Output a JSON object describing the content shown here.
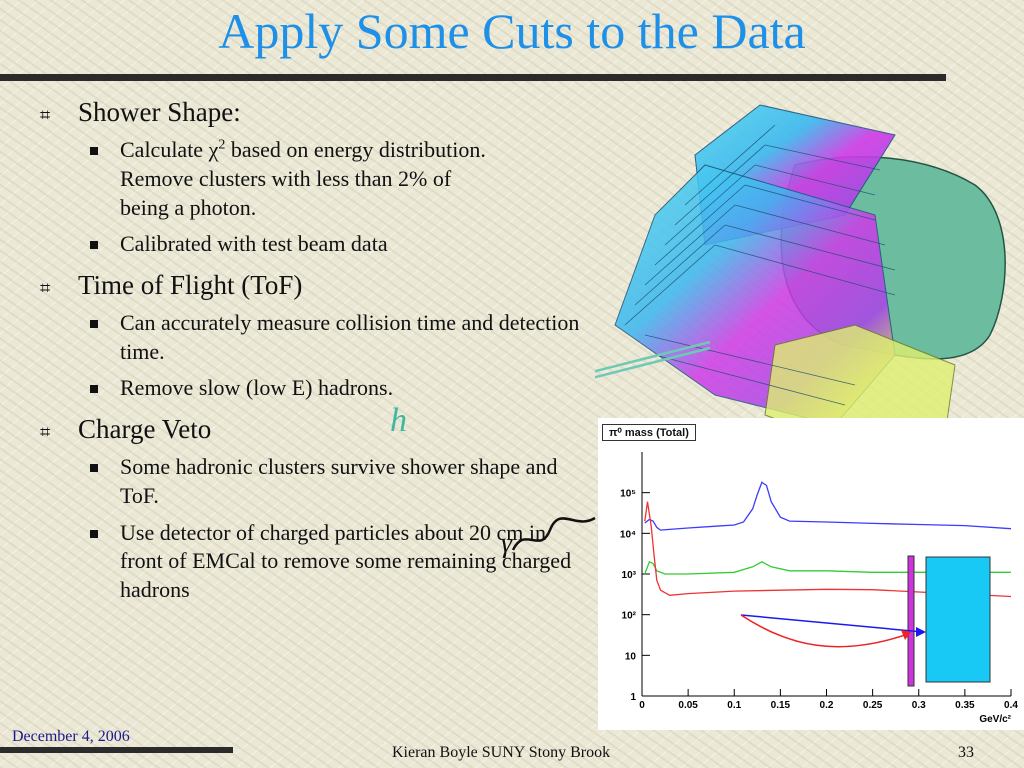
{
  "slide": {
    "title": "Apply Some Cuts to the Data",
    "footer_date": "December 4, 2006",
    "footer_author": "Kieran Boyle SUNY Stony Brook",
    "page_number": "33"
  },
  "bullets": {
    "shower_shape": {
      "heading": "Shower Shape:",
      "item1_pre": "Calculate χ",
      "item1_sup": "2",
      "item1_post": " based on energy distribution.  Remove clusters with less than 2% of being a photon.",
      "item2": "Calibrated with test beam data"
    },
    "tof": {
      "heading": "Time of Flight (ToF)",
      "item1": "Can accurately measure collision time and detection time.",
      "item2": "Remove slow (low E) hadrons."
    },
    "veto": {
      "heading": "Charge Veto",
      "item1": "Some hadronic clusters survive shower shape and ToF.",
      "item2": "Use detector of charged particles about 20 cm in front of EMCal to remove some remaining charged hadrons"
    }
  },
  "diagram": {
    "hadron_label": "h",
    "photon_label": "γ"
  },
  "chart_data": {
    "type": "line",
    "title": "π⁰ mass (Total)",
    "xlabel": "GeV/c²",
    "ylabel": "",
    "xlim": [
      0,
      0.4
    ],
    "ylim_log10": [
      0,
      6
    ],
    "y_log_scale": true,
    "x_ticks": [
      "0",
      "0.05",
      "0.1",
      "0.15",
      "0.2",
      "0.25",
      "0.3",
      "0.35",
      "0.4"
    ],
    "y_ticks": [
      "1",
      "10",
      "10²",
      "10³",
      "10⁴",
      "10⁵"
    ],
    "series": [
      {
        "color": "#3b3bff",
        "x": [
          0.003,
          0.008,
          0.012,
          0.016,
          0.02,
          0.03,
          0.05,
          0.08,
          0.1,
          0.11,
          0.12,
          0.125,
          0.13,
          0.135,
          0.14,
          0.15,
          0.16,
          0.2,
          0.25,
          0.3,
          0.35,
          0.4
        ],
        "y": [
          18000,
          22000,
          20000,
          14000,
          12000,
          12500,
          13500,
          15000,
          16000,
          19000,
          40000,
          90000,
          180000,
          150000,
          60000,
          25000,
          20000,
          19000,
          17500,
          16500,
          15500,
          13000
        ]
      },
      {
        "color": "#33cc33",
        "x": [
          0.003,
          0.008,
          0.012,
          0.016,
          0.025,
          0.05,
          0.1,
          0.12,
          0.13,
          0.14,
          0.16,
          0.2,
          0.25,
          0.3,
          0.35,
          0.4
        ],
        "y": [
          1000,
          2000,
          1800,
          1200,
          1000,
          1000,
          1100,
          1500,
          2000,
          1500,
          1200,
          1200,
          1100,
          1100,
          1100,
          1100
        ]
      },
      {
        "color": "#ee3333",
        "x": [
          0.003,
          0.006,
          0.01,
          0.013,
          0.016,
          0.02,
          0.03,
          0.05,
          0.1,
          0.15,
          0.2,
          0.25,
          0.3,
          0.35,
          0.4
        ],
        "y": [
          20000,
          60000,
          15000,
          3000,
          700,
          400,
          300,
          330,
          380,
          400,
          420,
          410,
          360,
          320,
          280
        ]
      }
    ]
  }
}
